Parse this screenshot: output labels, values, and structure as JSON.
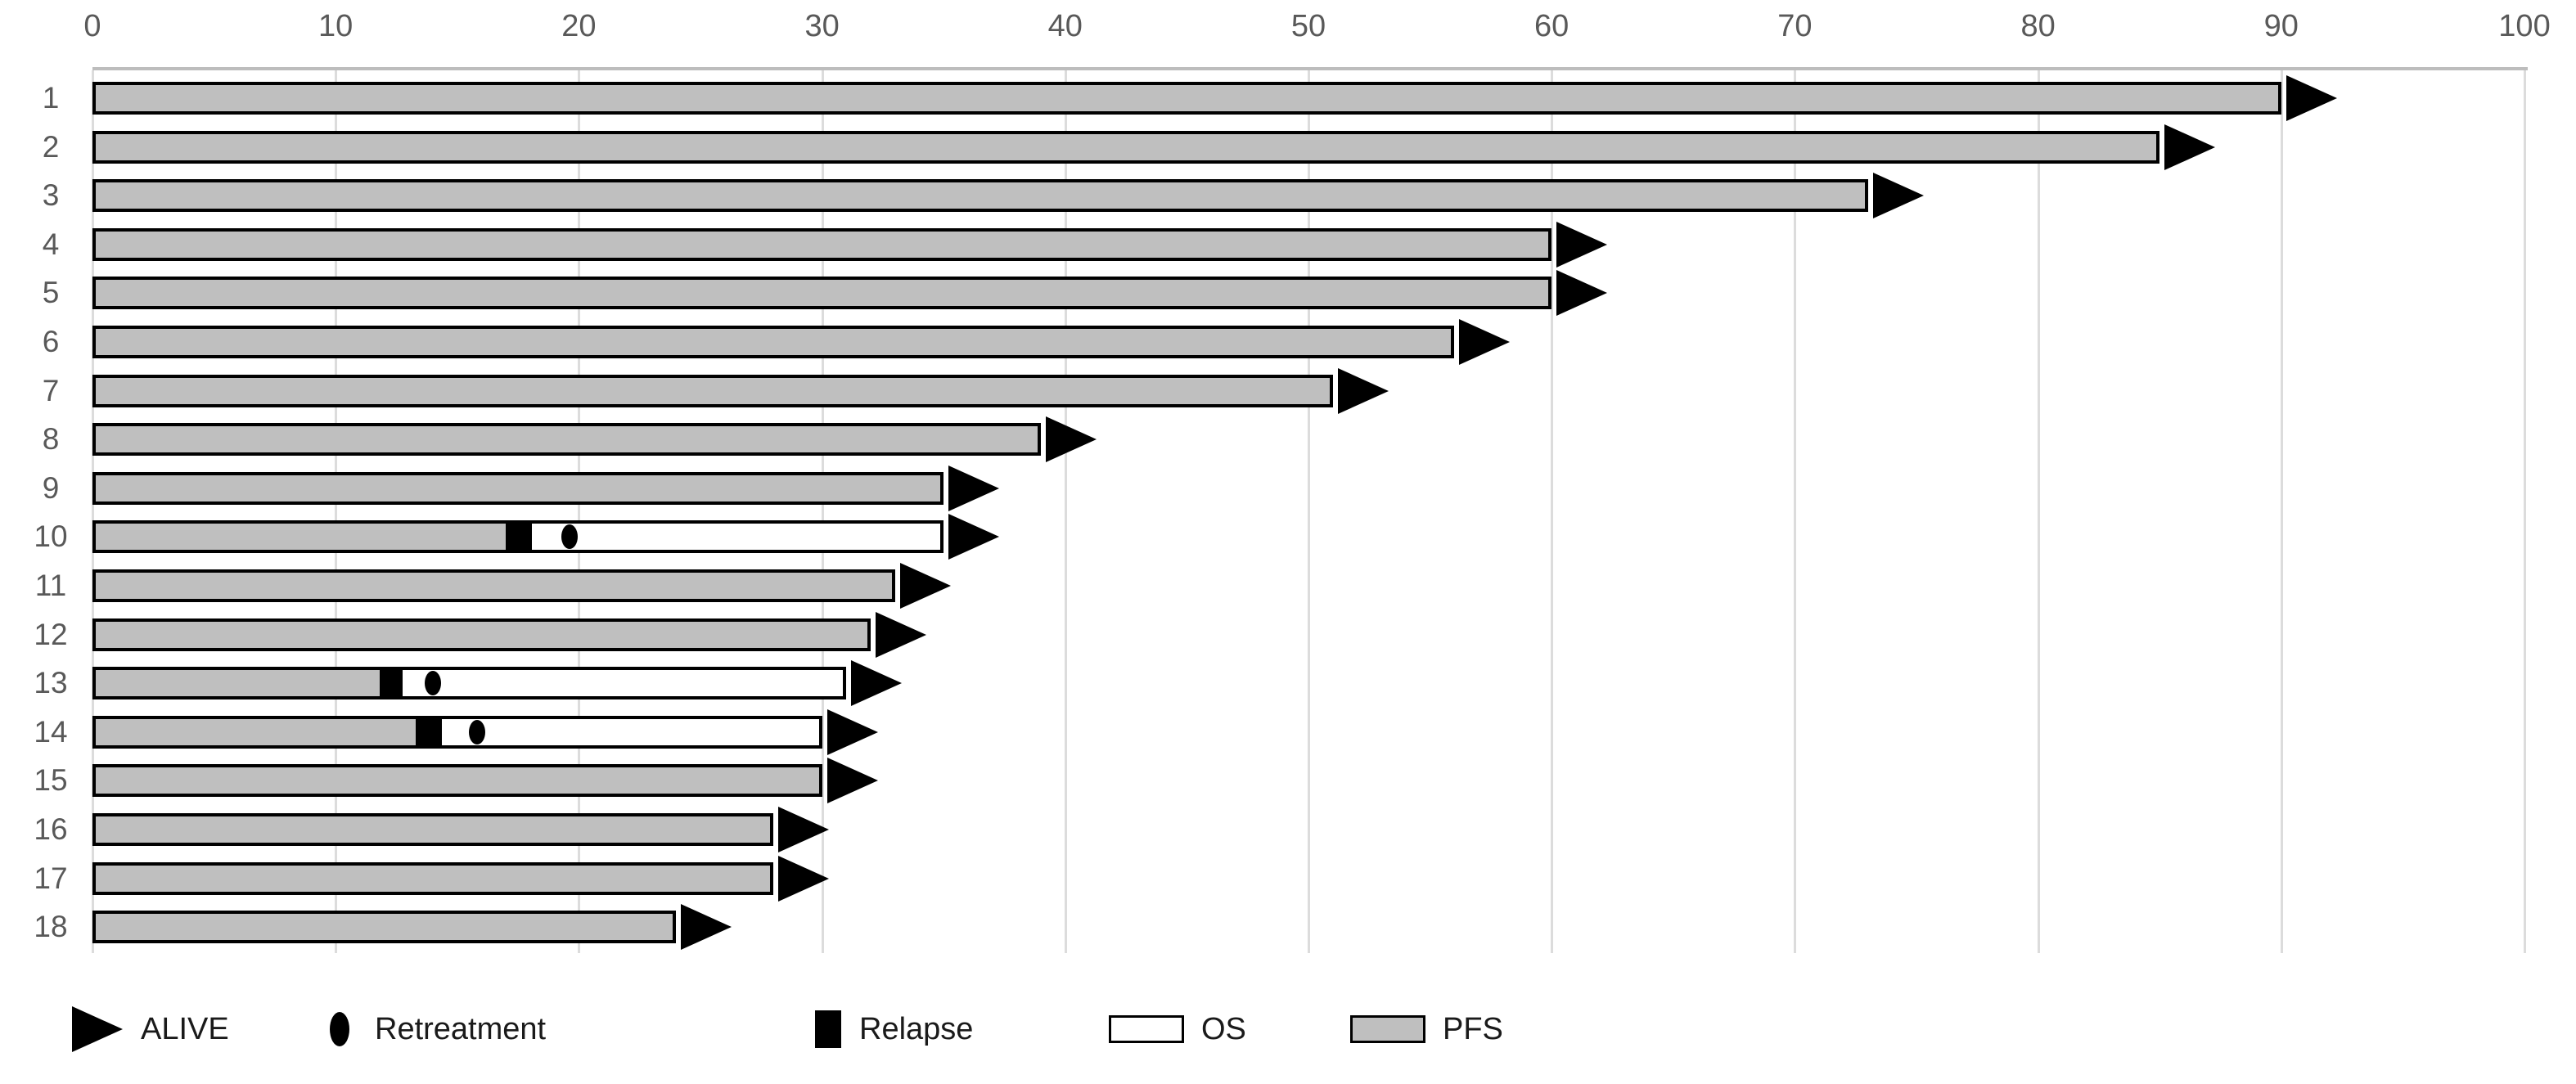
{
  "chart_data": {
    "type": "bar",
    "variant": "swimmer-plot",
    "orientation": "horizontal",
    "title": "",
    "x_axis": {
      "position": "top",
      "min": 0,
      "max": 100,
      "ticks": [
        0,
        10,
        20,
        30,
        40,
        50,
        60,
        70,
        80,
        90,
        100
      ],
      "gridlines": true
    },
    "y_axis": {
      "categories": [
        "1",
        "2",
        "3",
        "4",
        "5",
        "6",
        "7",
        "8",
        "9",
        "10",
        "11",
        "12",
        "13",
        "14",
        "15",
        "16",
        "17",
        "18"
      ]
    },
    "legend": {
      "position": "bottom",
      "items": [
        {
          "key": "alive",
          "label": "ALIVE",
          "marker": "black-right-arrow"
        },
        {
          "key": "retreatment",
          "label": "Retreatment",
          "marker": "black-ellipse"
        },
        {
          "key": "relapse",
          "label": "Relapse",
          "marker": "black-square"
        },
        {
          "key": "os",
          "label": "OS",
          "marker": "white-box"
        },
        {
          "key": "pfs",
          "label": "PFS",
          "marker": "gray-box"
        }
      ]
    },
    "colors": {
      "pfs_fill": "#bfbfbf",
      "os_fill": "#ffffff",
      "marker_fill": "#000000",
      "bar_border": "#000000",
      "gridline": "#dcdcdc",
      "axis_line": "#bdbdbd",
      "axis_text": "#595959",
      "legend_text": "#1a1a1a"
    },
    "patients": [
      {
        "id": "1",
        "pfs": 90,
        "os": null,
        "relapse": null,
        "retreatment": null,
        "alive": true
      },
      {
        "id": "2",
        "pfs": 85,
        "os": null,
        "relapse": null,
        "retreatment": null,
        "alive": true
      },
      {
        "id": "3",
        "pfs": 73,
        "os": null,
        "relapse": null,
        "retreatment": null,
        "alive": true
      },
      {
        "id": "4",
        "pfs": 60,
        "os": null,
        "relapse": null,
        "retreatment": null,
        "alive": true
      },
      {
        "id": "5",
        "pfs": 60,
        "os": null,
        "relapse": null,
        "retreatment": null,
        "alive": true
      },
      {
        "id": "6",
        "pfs": 56,
        "os": null,
        "relapse": null,
        "retreatment": null,
        "alive": true
      },
      {
        "id": "7",
        "pfs": 51,
        "os": null,
        "relapse": null,
        "retreatment": null,
        "alive": true
      },
      {
        "id": "8",
        "pfs": 39,
        "os": null,
        "relapse": null,
        "retreatment": null,
        "alive": true
      },
      {
        "id": "9",
        "pfs": 35,
        "os": null,
        "relapse": null,
        "retreatment": null,
        "alive": true
      },
      {
        "id": "10",
        "pfs": 17,
        "os": 35,
        "relapse": [
          17,
          18
        ],
        "retreatment": 19.6,
        "alive": true
      },
      {
        "id": "11",
        "pfs": 33,
        "os": null,
        "relapse": null,
        "retreatment": null,
        "alive": true
      },
      {
        "id": "12",
        "pfs": 32,
        "os": null,
        "relapse": null,
        "retreatment": null,
        "alive": true
      },
      {
        "id": "13",
        "pfs": 11.8,
        "os": 31,
        "relapse": [
          11.8,
          12.7
        ],
        "retreatment": 14,
        "alive": true
      },
      {
        "id": "14",
        "pfs": 13.3,
        "os": 30,
        "relapse": [
          13.3,
          14.3
        ],
        "retreatment": 15.8,
        "alive": true
      },
      {
        "id": "15",
        "pfs": 30,
        "os": null,
        "relapse": null,
        "retreatment": null,
        "alive": true
      },
      {
        "id": "16",
        "pfs": 28,
        "os": null,
        "relapse": null,
        "retreatment": null,
        "alive": true
      },
      {
        "id": "17",
        "pfs": 28,
        "os": null,
        "relapse": null,
        "retreatment": null,
        "alive": true
      },
      {
        "id": "18",
        "pfs": 24,
        "os": null,
        "relapse": null,
        "retreatment": null,
        "alive": true
      }
    ]
  }
}
